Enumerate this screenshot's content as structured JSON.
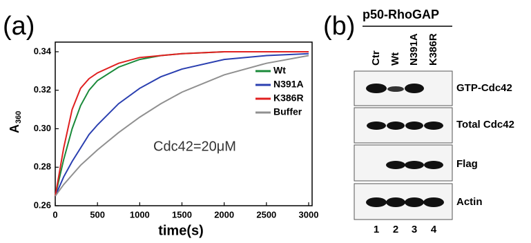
{
  "chart_data": {
    "type": "line",
    "panel_label": "(a)",
    "ylabel": "A",
    "ylabel_subscript": "360",
    "xlabel": "time(s)",
    "annotation": "Cdc42=20μM",
    "x": [
      0,
      100,
      200,
      300,
      400,
      500,
      750,
      1000,
      1250,
      1500,
      2000,
      2500,
      3000
    ],
    "series": [
      {
        "name": "Wt",
        "color": "#1a8a3a",
        "values": [
          0.265,
          0.284,
          0.3,
          0.312,
          0.32,
          0.325,
          0.332,
          0.336,
          0.338,
          0.339,
          0.34,
          0.34,
          0.34
        ]
      },
      {
        "name": "N391A",
        "color": "#2a3fb0",
        "values": [
          0.265,
          0.275,
          0.283,
          0.29,
          0.297,
          0.302,
          0.313,
          0.321,
          0.327,
          0.331,
          0.336,
          0.338,
          0.339
        ]
      },
      {
        "name": "K386R",
        "color": "#e02020",
        "values": [
          0.265,
          0.29,
          0.31,
          0.321,
          0.326,
          0.329,
          0.334,
          0.337,
          0.338,
          0.339,
          0.34,
          0.34,
          0.34
        ]
      },
      {
        "name": "Buffer",
        "color": "#909090",
        "values": [
          0.265,
          0.271,
          0.276,
          0.281,
          0.285,
          0.289,
          0.298,
          0.306,
          0.313,
          0.319,
          0.328,
          0.334,
          0.338
        ]
      }
    ],
    "xlim": [
      0,
      3000
    ],
    "xticks": [
      0,
      500,
      1000,
      1500,
      2000,
      2500,
      3000
    ],
    "ylim": [
      0.26,
      0.345
    ],
    "yticks": [
      0.26,
      0.28,
      {
        "value": 0.3,
        "label": "0.30"
      },
      0.32,
      0.34
    ]
  },
  "blot": {
    "panel_label": "(b)",
    "title": "p50-RhoGAP",
    "lanes": [
      "Ctr",
      "Wt",
      "N391A",
      "K386R"
    ],
    "lane_numbers": [
      "1",
      "2",
      "3",
      "4"
    ],
    "rows": [
      "GTP-Cdc42",
      "Total Cdc42",
      "Flag",
      "Actin"
    ]
  }
}
